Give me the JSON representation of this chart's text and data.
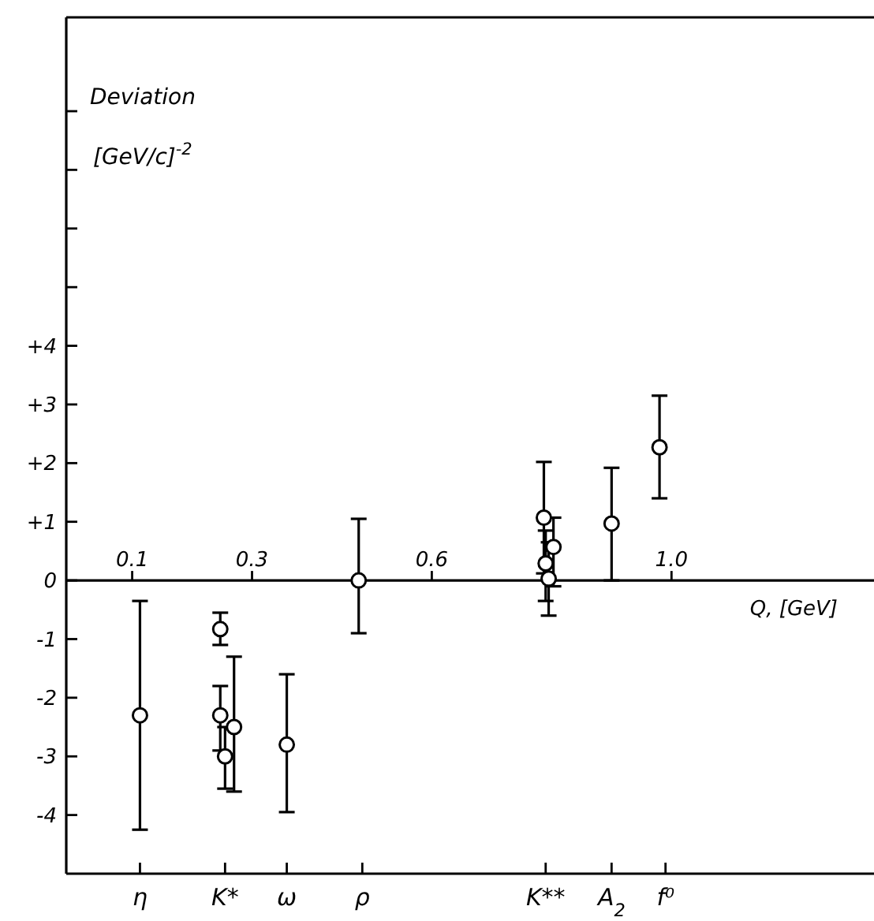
{
  "chart_data": {
    "type": "scatter",
    "ylabel": "Deviation [GeV/c]$^{-2}$",
    "xlabel": "Q, [GeV]",
    "xlim": [
      -0.01,
      1.33
    ],
    "ylim": [
      -5,
      9.6
    ],
    "xticks": [
      0.1,
      0.3,
      0.6,
      {
        "value": 1.0,
        "label": "1.0"
      }
    ],
    "ref_lines": [
      {
        "axis": "x",
        "value": 0.113,
        "label": "η"
      },
      {
        "axis": "x",
        "value": 0.255,
        "label": "K*"
      },
      {
        "axis": "x",
        "value": 0.358,
        "label": "ω"
      },
      {
        "axis": "x",
        "value": 0.484,
        "label": "ρ"
      },
      {
        "axis": "x",
        "value": 0.79,
        "label": "K**"
      },
      {
        "axis": "x",
        "value": 0.9,
        "label": "A$_{2}$"
      },
      {
        "axis": "x",
        "value": 0.99,
        "label": "f⁰"
      }
    ],
    "yticks": [
      {
        "value": -4,
        "label": "-4"
      },
      {
        "value": -3,
        "label": "-3"
      },
      {
        "value": -2,
        "label": "-2"
      },
      {
        "value": -1,
        "label": "-1"
      },
      0,
      {
        "value": 1,
        "label": "+1"
      },
      {
        "value": 2,
        "label": "+2"
      },
      {
        "value": 3,
        "label": "+3"
      },
      {
        "value": 4,
        "label": "+4"
      },
      {
        "value": 5,
        "label": null
      },
      {
        "value": 6,
        "label": null
      },
      {
        "value": 7,
        "label": null
      },
      {
        "value": 8,
        "label": null
      }
    ],
    "marker": "circle",
    "series": [
      {
        "color": "#000000",
        "x": [
          0.113,
          0.247,
          0.247,
          0.255,
          0.27,
          0.358,
          0.478,
          0.787,
          0.79,
          0.795,
          0.803,
          0.9,
          0.98
        ],
        "values": [
          -2.3,
          -0.83,
          -2.3,
          -3.0,
          -2.5,
          -2.8,
          0,
          1.07,
          0.29,
          0.03,
          0.57,
          0.97,
          2.27
        ],
        "errors": [
          [
            -4.25,
            -0.35
          ],
          [
            -1.1,
            -0.55
          ],
          [
            -2.9,
            -1.8
          ],
          [
            -3.55,
            -2.5
          ],
          [
            -3.6,
            -1.3
          ],
          [
            -3.95,
            -1.6
          ],
          [
            -0.9,
            1.05
          ],
          [
            0.12,
            2.02
          ],
          [
            -0.35,
            0.85
          ],
          [
            -0.6,
            0.65
          ],
          [
            -0.1,
            1.07
          ],
          [
            0,
            1.92
          ],
          [
            1.4,
            3.15
          ]
        ]
      }
    ]
  }
}
